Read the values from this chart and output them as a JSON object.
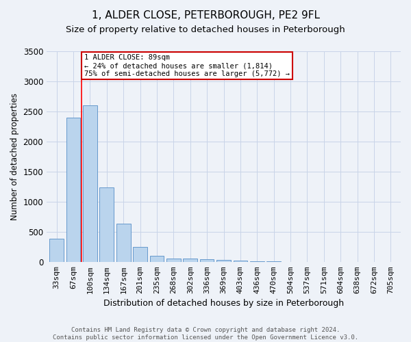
{
  "title": "1, ALDER CLOSE, PETERBOROUGH, PE2 9FL",
  "subtitle": "Size of property relative to detached houses in Peterborough",
  "xlabel": "Distribution of detached houses by size in Peterborough",
  "ylabel": "Number of detached properties",
  "footer_line1": "Contains HM Land Registry data © Crown copyright and database right 2024.",
  "footer_line2": "Contains public sector information licensed under the Open Government Licence v3.0.",
  "categories": [
    "33sqm",
    "67sqm",
    "100sqm",
    "134sqm",
    "167sqm",
    "201sqm",
    "235sqm",
    "268sqm",
    "302sqm",
    "336sqm",
    "369sqm",
    "403sqm",
    "436sqm",
    "470sqm",
    "504sqm",
    "537sqm",
    "571sqm",
    "604sqm",
    "638sqm",
    "672sqm",
    "705sqm"
  ],
  "values": [
    390,
    2400,
    2600,
    1240,
    640,
    255,
    100,
    65,
    60,
    45,
    35,
    25,
    15,
    10,
    5,
    3,
    2,
    2,
    1,
    1,
    1
  ],
  "bar_color": "#bad4ed",
  "bar_edge_color": "#6699cc",
  "grid_color": "#c8d4e8",
  "background_color": "#eef2f8",
  "red_line_x": 1.5,
  "annotation_line1": "1 ALDER CLOSE: 89sqm",
  "annotation_line2": "← 24% of detached houses are smaller (1,814)",
  "annotation_line3": "75% of semi-detached houses are larger (5,772) →",
  "annotation_box_color": "#ffffff",
  "annotation_border_color": "#cc0000",
  "ylim": [
    0,
    3500
  ],
  "title_fontsize": 11,
  "subtitle_fontsize": 9.5,
  "xlabel_fontsize": 9,
  "ylabel_fontsize": 8.5,
  "tick_fontsize": 8,
  "ytick_fontsize": 8.5,
  "footer_fontsize": 6.5
}
